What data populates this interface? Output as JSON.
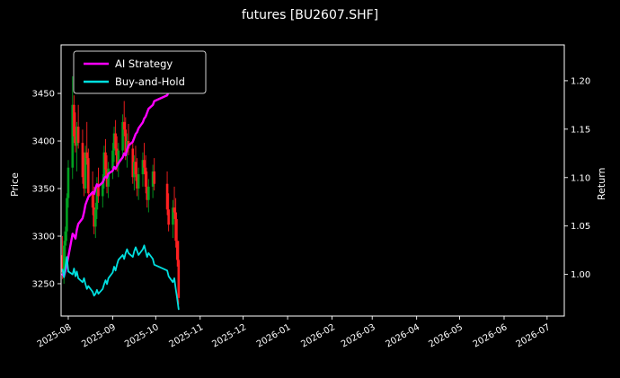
{
  "page": {
    "title": "futures [BU2607.SHF]"
  },
  "chart_data": {
    "type": "mixed",
    "subtypes": [
      "candlestick",
      "line"
    ],
    "title": "futures [BU2607.SHF]",
    "ylabel_left": "Price",
    "ylabel_right": "Return",
    "grid": false,
    "x_domain": [
      "2025-07-27",
      "2026-07-13"
    ],
    "x_ticks": [
      {
        "date": "2025-08-01",
        "label": "2025-08"
      },
      {
        "date": "2025-09-01",
        "label": "2025-09"
      },
      {
        "date": "2025-10-01",
        "label": "2025-10"
      },
      {
        "date": "2025-11-01",
        "label": "2025-11"
      },
      {
        "date": "2025-12-01",
        "label": "2025-12"
      },
      {
        "date": "2026-01-01",
        "label": "2026-01"
      },
      {
        "date": "2026-02-01",
        "label": "2026-02"
      },
      {
        "date": "2026-03-01",
        "label": "2026-03"
      },
      {
        "date": "2026-04-01",
        "label": "2026-04"
      },
      {
        "date": "2026-05-01",
        "label": "2026-05"
      },
      {
        "date": "2026-06-01",
        "label": "2026-06"
      },
      {
        "date": "2026-07-01",
        "label": "2026-07"
      }
    ],
    "left_axis": {
      "label": "Price",
      "ticks": [
        3250,
        3300,
        3350,
        3400,
        3450
      ],
      "range": [
        3216,
        3501
      ]
    },
    "right_axis": {
      "label": "Return",
      "tick_labels": [
        "1.00",
        "1.05",
        "1.10",
        "1.15",
        "1.20"
      ],
      "tick_values": [
        1.0,
        1.05,
        1.1,
        1.15,
        1.2
      ],
      "range": [
        0.957,
        1.237
      ]
    },
    "legend": {
      "position": "upper left",
      "entries": [
        {
          "label": "AI Strategy",
          "color": "#ff00ff"
        },
        {
          "label": "Buy-and-Hold",
          "color": "#00e0e0"
        }
      ]
    },
    "colors": {
      "background": "#000000",
      "text": "#ffffff",
      "spine": "#ffffff",
      "up_candle": "#00a020",
      "down_candle": "#ff2020",
      "legend_edge": "#cfcfcf"
    },
    "candles_format": [
      "date",
      "open",
      "high",
      "low",
      "close"
    ],
    "candles": [
      [
        "2025-07-28",
        3280,
        3300,
        3255,
        3262
      ],
      [
        "2025-07-29",
        3262,
        3295,
        3250,
        3290
      ],
      [
        "2025-07-30",
        3290,
        3310,
        3270,
        3305
      ],
      [
        "2025-07-31",
        3305,
        3345,
        3295,
        3340
      ],
      [
        "2025-08-01",
        3340,
        3380,
        3330,
        3372
      ],
      [
        "2025-08-04",
        3372,
        3468,
        3360,
        3438
      ],
      [
        "2025-08-05",
        3438,
        3448,
        3398,
        3405
      ],
      [
        "2025-08-06",
        3405,
        3430,
        3388,
        3395
      ],
      [
        "2025-08-07",
        3395,
        3420,
        3368,
        3415
      ],
      [
        "2025-08-08",
        3415,
        3438,
        3392,
        3398
      ],
      [
        "2025-08-11",
        3398,
        3412,
        3355,
        3362
      ],
      [
        "2025-08-12",
        3362,
        3388,
        3342,
        3350
      ],
      [
        "2025-08-13",
        3350,
        3395,
        3345,
        3388
      ],
      [
        "2025-08-14",
        3388,
        3420,
        3375,
        3382
      ],
      [
        "2025-08-15",
        3382,
        3392,
        3338,
        3345
      ],
      [
        "2025-08-18",
        3345,
        3368,
        3322,
        3330
      ],
      [
        "2025-08-19",
        3330,
        3352,
        3302,
        3310
      ],
      [
        "2025-08-20",
        3310,
        3335,
        3298,
        3328
      ],
      [
        "2025-08-21",
        3328,
        3362,
        3318,
        3355
      ],
      [
        "2025-08-22",
        3355,
        3372,
        3335,
        3342
      ],
      [
        "2025-08-25",
        3342,
        3365,
        3330,
        3358
      ],
      [
        "2025-08-26",
        3358,
        3395,
        3350,
        3388
      ],
      [
        "2025-08-27",
        3388,
        3402,
        3362,
        3370
      ],
      [
        "2025-08-28",
        3370,
        3385,
        3345,
        3352
      ],
      [
        "2025-08-29",
        3352,
        3378,
        3340,
        3371
      ],
      [
        "2025-09-01",
        3371,
        3398,
        3360,
        3390
      ],
      [
        "2025-09-02",
        3390,
        3415,
        3378,
        3408
      ],
      [
        "2025-09-03",
        3408,
        3422,
        3385,
        3392
      ],
      [
        "2025-09-04",
        3392,
        3405,
        3368,
        3375
      ],
      [
        "2025-09-05",
        3375,
        3398,
        3362,
        3390
      ],
      [
        "2025-09-08",
        3390,
        3428,
        3382,
        3420
      ],
      [
        "2025-09-09",
        3420,
        3442,
        3405,
        3412
      ],
      [
        "2025-09-10",
        3412,
        3425,
        3380,
        3388
      ],
      [
        "2025-09-11",
        3388,
        3408,
        3372,
        3400
      ],
      [
        "2025-09-12",
        3400,
        3418,
        3385,
        3392
      ],
      [
        "2025-09-15",
        3392,
        3402,
        3355,
        3362
      ],
      [
        "2025-09-16",
        3362,
        3385,
        3348,
        3378
      ],
      [
        "2025-09-17",
        3378,
        3395,
        3358,
        3365
      ],
      [
        "2025-09-18",
        3365,
        3382,
        3342,
        3350
      ],
      [
        "2025-09-19",
        3350,
        3372,
        3338,
        3365
      ],
      [
        "2025-09-22",
        3365,
        3388,
        3352,
        3380
      ],
      [
        "2025-09-23",
        3380,
        3398,
        3365,
        3372
      ],
      [
        "2025-09-24",
        3372,
        3385,
        3345,
        3352
      ],
      [
        "2025-09-25",
        3352,
        3368,
        3330,
        3338
      ],
      [
        "2025-09-26",
        3338,
        3360,
        3325,
        3352
      ],
      [
        "2025-09-29",
        3352,
        3375,
        3340,
        3368
      ],
      [
        "2025-09-30",
        3368,
        3382,
        3348,
        3355
      ],
      [
        "2025-10-09",
        3355,
        3368,
        3322,
        3328
      ],
      [
        "2025-10-10",
        3328,
        3345,
        3305,
        3312
      ],
      [
        "2025-10-13",
        3312,
        3338,
        3298,
        3330
      ],
      [
        "2025-10-14",
        3330,
        3352,
        3318,
        3325
      ],
      [
        "2025-10-15",
        3325,
        3340,
        3288,
        3295
      ],
      [
        "2025-10-16",
        3295,
        3318,
        3268,
        3275
      ],
      [
        "2025-10-17",
        3275,
        3295,
        3228,
        3235
      ]
    ],
    "series": [
      {
        "name": "AI Strategy",
        "axis": "right",
        "color": "#ff00ff",
        "width": 2.4,
        "points": [
          [
            "2025-07-28",
            1.0
          ],
          [
            "2025-07-29",
            0.998
          ],
          [
            "2025-07-30",
            1.004
          ],
          [
            "2025-07-31",
            1.01
          ],
          [
            "2025-08-01",
            1.018
          ],
          [
            "2025-08-04",
            1.042
          ],
          [
            "2025-08-05",
            1.04
          ],
          [
            "2025-08-06",
            1.037
          ],
          [
            "2025-08-07",
            1.046
          ],
          [
            "2025-08-08",
            1.052
          ],
          [
            "2025-08-11",
            1.058
          ],
          [
            "2025-08-12",
            1.064
          ],
          [
            "2025-08-13",
            1.072
          ],
          [
            "2025-08-14",
            1.076
          ],
          [
            "2025-08-15",
            1.08
          ],
          [
            "2025-08-18",
            1.085
          ],
          [
            "2025-08-19",
            1.083
          ],
          [
            "2025-08-20",
            1.089
          ],
          [
            "2025-08-21",
            1.093
          ],
          [
            "2025-08-22",
            1.091
          ],
          [
            "2025-08-25",
            1.095
          ],
          [
            "2025-08-26",
            1.099
          ],
          [
            "2025-08-27",
            1.101
          ],
          [
            "2025-08-28",
            1.1
          ],
          [
            "2025-08-29",
            1.104
          ],
          [
            "2025-09-01",
            1.107
          ],
          [
            "2025-09-02",
            1.111
          ],
          [
            "2025-09-03",
            1.109
          ],
          [
            "2025-09-04",
            1.112
          ],
          [
            "2025-09-05",
            1.115
          ],
          [
            "2025-09-08",
            1.121
          ],
          [
            "2025-09-09",
            1.125
          ],
          [
            "2025-09-10",
            1.123
          ],
          [
            "2025-09-11",
            1.129
          ],
          [
            "2025-09-12",
            1.133
          ],
          [
            "2025-09-15",
            1.137
          ],
          [
            "2025-09-16",
            1.141
          ],
          [
            "2025-09-17",
            1.145
          ],
          [
            "2025-09-18",
            1.147
          ],
          [
            "2025-09-19",
            1.151
          ],
          [
            "2025-09-22",
            1.157
          ],
          [
            "2025-09-23",
            1.161
          ],
          [
            "2025-09-24",
            1.163
          ],
          [
            "2025-09-25",
            1.167
          ],
          [
            "2025-09-26",
            1.171
          ],
          [
            "2025-09-29",
            1.175
          ],
          [
            "2025-09-30",
            1.179
          ],
          [
            "2025-10-09",
            1.185
          ],
          [
            "2025-10-10",
            1.189
          ],
          [
            "2025-10-13",
            1.195
          ],
          [
            "2025-10-14",
            1.199
          ],
          [
            "2025-10-15",
            1.204
          ],
          [
            "2025-10-16",
            1.209
          ],
          [
            "2025-10-17",
            1.214
          ]
        ]
      },
      {
        "name": "Buy-and-Hold",
        "axis": "right",
        "color": "#00e0e0",
        "width": 1.8,
        "points": [
          [
            "2025-07-28",
            1.005
          ],
          [
            "2025-07-29",
            0.997
          ],
          [
            "2025-07-30",
            1.008
          ],
          [
            "2025-07-31",
            1.018
          ],
          [
            "2025-08-01",
            1.003
          ],
          [
            "2025-08-04",
            1.0
          ],
          [
            "2025-08-05",
            1.006
          ],
          [
            "2025-08-06",
            0.998
          ],
          [
            "2025-08-07",
            1.003
          ],
          [
            "2025-08-08",
            0.996
          ],
          [
            "2025-08-11",
            0.992
          ],
          [
            "2025-08-12",
            0.996
          ],
          [
            "2025-08-13",
            0.99
          ],
          [
            "2025-08-14",
            0.985
          ],
          [
            "2025-08-15",
            0.988
          ],
          [
            "2025-08-18",
            0.982
          ],
          [
            "2025-08-19",
            0.978
          ],
          [
            "2025-08-20",
            0.98
          ],
          [
            "2025-08-21",
            0.984
          ],
          [
            "2025-08-22",
            0.98
          ],
          [
            "2025-08-25",
            0.985
          ],
          [
            "2025-08-26",
            0.99
          ],
          [
            "2025-08-27",
            0.994
          ],
          [
            "2025-08-28",
            0.99
          ],
          [
            "2025-08-29",
            0.996
          ],
          [
            "2025-09-01",
            1.002
          ],
          [
            "2025-09-02",
            1.008
          ],
          [
            "2025-09-03",
            1.004
          ],
          [
            "2025-09-04",
            1.01
          ],
          [
            "2025-09-05",
            1.015
          ],
          [
            "2025-09-08",
            1.02
          ],
          [
            "2025-09-09",
            1.016
          ],
          [
            "2025-09-10",
            1.022
          ],
          [
            "2025-09-11",
            1.026
          ],
          [
            "2025-09-12",
            1.022
          ],
          [
            "2025-09-15",
            1.018
          ],
          [
            "2025-09-16",
            1.024
          ],
          [
            "2025-09-17",
            1.028
          ],
          [
            "2025-09-18",
            1.024
          ],
          [
            "2025-09-19",
            1.02
          ],
          [
            "2025-09-22",
            1.026
          ],
          [
            "2025-09-23",
            1.03
          ],
          [
            "2025-09-24",
            1.024
          ],
          [
            "2025-09-25",
            1.018
          ],
          [
            "2025-09-26",
            1.022
          ],
          [
            "2025-09-29",
            1.016
          ],
          [
            "2025-09-30",
            1.01
          ],
          [
            "2025-10-09",
            1.004
          ],
          [
            "2025-10-10",
            0.998
          ],
          [
            "2025-10-13",
            0.992
          ],
          [
            "2025-10-14",
            0.996
          ],
          [
            "2025-10-15",
            0.985
          ],
          [
            "2025-10-16",
            0.975
          ],
          [
            "2025-10-17",
            0.964
          ]
        ]
      }
    ]
  }
}
